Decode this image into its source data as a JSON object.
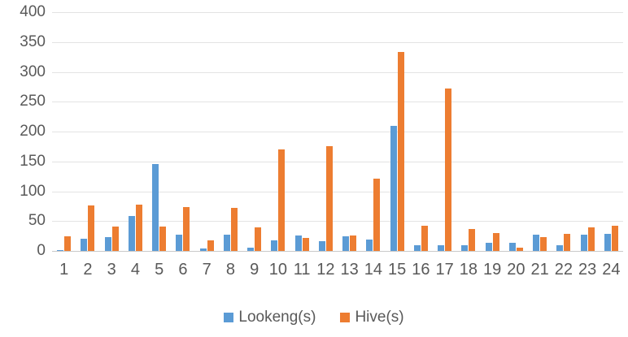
{
  "chart_data": {
    "type": "bar",
    "title": "",
    "xlabel": "",
    "ylabel": "",
    "categories": [
      "1",
      "2",
      "3",
      "4",
      "5",
      "6",
      "7",
      "8",
      "9",
      "10",
      "11",
      "12",
      "13",
      "14",
      "15",
      "16",
      "17",
      "18",
      "19",
      "20",
      "21",
      "22",
      "23",
      "24"
    ],
    "series": [
      {
        "name": "Lookeng(s)",
        "color": "#5B9BD5",
        "values": [
          2,
          20,
          23,
          58,
          145,
          27,
          4,
          27,
          5,
          18,
          26,
          17,
          24,
          19,
          210,
          9,
          10,
          10,
          13,
          13,
          27,
          10,
          27,
          28
        ]
      },
      {
        "name": "Hive(s)",
        "color": "#ED7D31",
        "values": [
          25,
          76,
          41,
          78,
          41,
          74,
          18,
          72,
          40,
          170,
          22,
          175,
          26,
          121,
          333,
          42,
          272,
          37,
          30,
          5,
          23,
          29,
          39,
          42
        ]
      }
    ],
    "ylim": [
      0,
      400
    ],
    "yticks": [
      0,
      50,
      100,
      150,
      200,
      250,
      300,
      350,
      400
    ],
    "grid": true,
    "legend_position": "bottom",
    "axis_text_color": "#595959",
    "gridline_color": "#e3e3e3"
  }
}
